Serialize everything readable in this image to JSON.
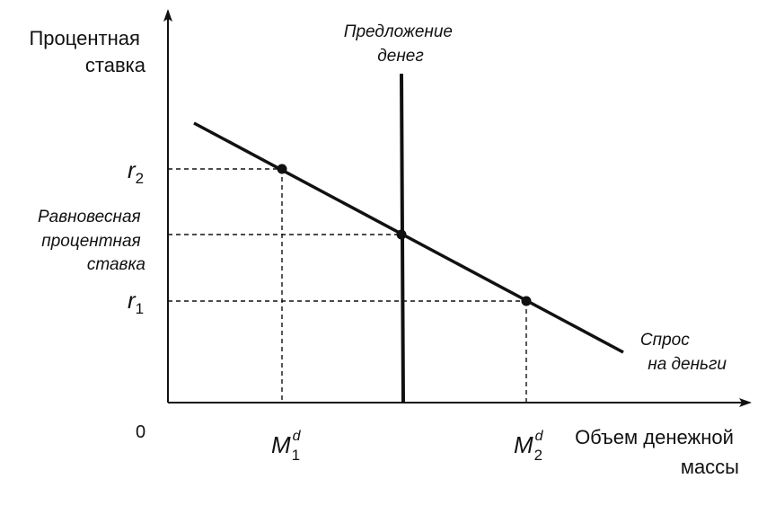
{
  "diagram": {
    "y_axis_title": [
      "Процентная",
      "ставка"
    ],
    "x_axis_title": [
      "Объем денежной",
      "массы"
    ],
    "origin_label": "0",
    "supply_label": [
      "Предложение",
      "денег"
    ],
    "demand_label": [
      "Спрос",
      "на деньги"
    ],
    "equilibrium_label": [
      "Равновесная",
      "процентная",
      "ставка"
    ],
    "y_ticks": [
      {
        "symbol": "r",
        "sub": "2"
      },
      {
        "symbol": "r",
        "sub": "1"
      }
    ],
    "x_ticks": [
      {
        "symbol": "M",
        "sub": "1",
        "sup": "d"
      },
      {
        "symbol": "M",
        "sub": "2",
        "sup": "d"
      }
    ],
    "colors": {
      "ink": "#111111",
      "background": "#ffffff"
    }
  }
}
